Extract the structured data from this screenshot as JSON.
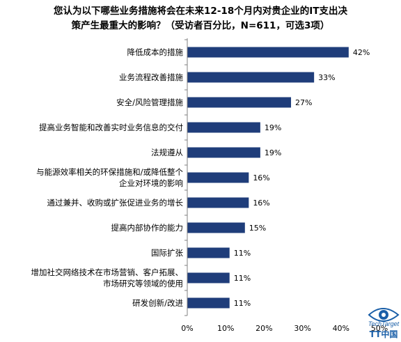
{
  "chart_data": {
    "type": "bar",
    "orientation": "horizontal",
    "title": [
      "您认为以下哪些业务措施将会在未来12-18个月内对贵企业的IT支出决",
      "策产生最重大的影响？（受访者百分比，N=611，可选3项）"
    ],
    "categories": [
      [
        "降低成本的措施"
      ],
      [
        "业务流程改善措施"
      ],
      [
        "安全/风险管理措施"
      ],
      [
        "提高业务智能和改善实时业务信息的交付"
      ],
      [
        "法规遵从"
      ],
      [
        "与能源效率相关的环保措施和/或降低整个",
        "企业对环境的影响"
      ],
      [
        "通过兼并、收购或扩张促进业务的增长"
      ],
      [
        "提高内部协作的能力"
      ],
      [
        "国际扩张"
      ],
      [
        "增加社交网络技术在市场营销、客户拓展、",
        "市场研究等领域的使用"
      ],
      [
        "研发创新/改进"
      ]
    ],
    "values": [
      42,
      33,
      27,
      19,
      19,
      16,
      16,
      15,
      11,
      11,
      11
    ],
    "value_labels": [
      "42%",
      "33%",
      "27%",
      "19%",
      "19%",
      "16%",
      "16%",
      "15%",
      "11%",
      "11%",
      "11%"
    ],
    "xlim": [
      0,
      50
    ],
    "xticks": [
      0,
      10,
      20,
      30,
      40,
      50
    ],
    "xtick_labels": [
      "0%",
      "10%",
      "20%",
      "30%",
      "40%",
      "50%"
    ],
    "bar_color": "#1f3d7a",
    "grid": false,
    "legend": "none"
  },
  "watermark": {
    "logo_text": "TechTarget",
    "sub_text": "TT中国",
    "color": "#1a5fa8",
    "icon": "eye-logo-icon"
  }
}
